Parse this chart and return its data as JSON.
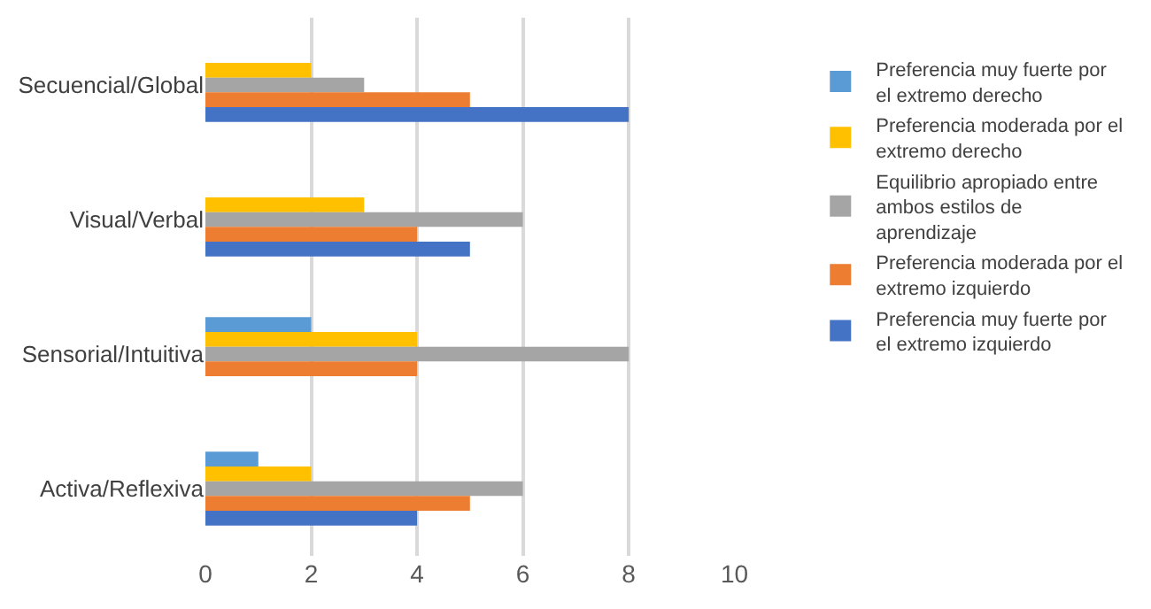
{
  "chart_data": {
    "type": "bar",
    "orientation": "horizontal",
    "categories": [
      "Secuencial/Global",
      "Visual/Verbal",
      "Sensorial/Intuitiva",
      "Activa/Reflexiva"
    ],
    "series": [
      {
        "name": "Preferencia muy fuerte por el extremo derecho",
        "color": "#5b9bd5",
        "values": [
          0,
          0,
          2,
          1
        ]
      },
      {
        "name": "Preferencia moderada por el extremo derecho",
        "color": "#ffc000",
        "values": [
          2,
          3,
          4,
          2
        ]
      },
      {
        "name": "Equilibrio apropiado entre ambos estilos de aprendizaje",
        "color": "#a5a5a5",
        "values": [
          3,
          6,
          8,
          6
        ]
      },
      {
        "name": "Preferencia moderada por el extremo izquierdo",
        "color": "#ed7d31",
        "values": [
          5,
          4,
          4,
          5
        ]
      },
      {
        "name": "Preferencia muy fuerte por el extremo izquierdo",
        "color": "#4472c4",
        "values": [
          8,
          5,
          0,
          4
        ]
      }
    ],
    "xlim": [
      0,
      10
    ],
    "xticks": [
      0,
      2,
      4,
      6,
      8,
      10
    ],
    "grid": "x",
    "legend": "right"
  }
}
